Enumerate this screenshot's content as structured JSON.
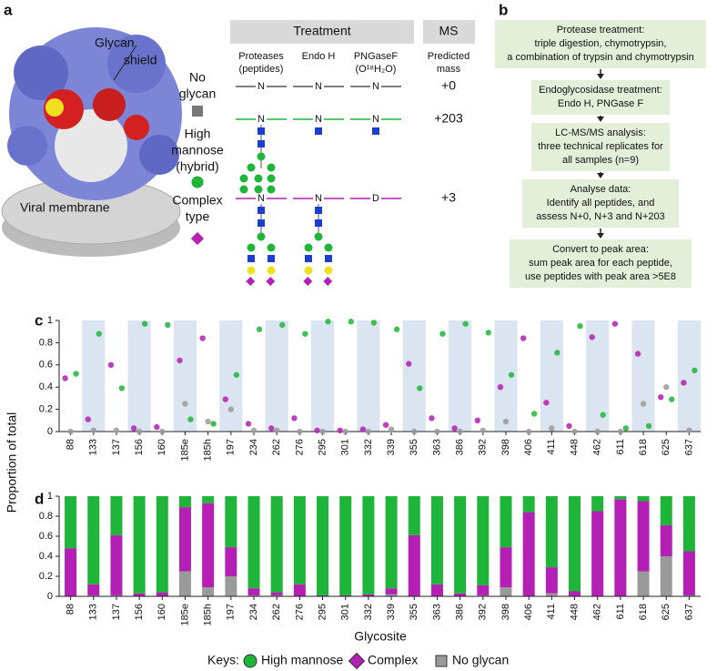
{
  "panel_labels": [
    "a",
    "b",
    "c",
    "d"
  ],
  "panel_a": {
    "glycan_shield": [
      "Glycan",
      "shield"
    ],
    "viral_membrane": "Viral membrane",
    "treatment": "Treatment",
    "ms": "MS",
    "columns": [
      [
        "Proteases",
        "(peptides)"
      ],
      [
        "Endo H"
      ],
      [
        "PNGaseF",
        "(O¹⁸H₂O)"
      ],
      [
        "Predicted",
        "mass"
      ]
    ],
    "rows": [
      {
        "label": [
          "No",
          "glycan"
        ],
        "residues": [
          "N",
          "N",
          "N"
        ],
        "mass": "+0"
      },
      {
        "label": [
          "High",
          "mannose",
          "(hybrid)"
        ],
        "residues": [
          "N",
          "N",
          "N"
        ],
        "mass": "+203"
      },
      {
        "label": [
          "Complex",
          "type"
        ],
        "residues": [
          "N",
          "N",
          "D"
        ],
        "mass": "+3"
      }
    ]
  },
  "panel_b": {
    "steps": [
      [
        "Protease treatment:",
        "triple digestion, chymotrypsin,",
        "a combination of trypsin and chymotrypsin"
      ],
      [
        "Endoglycosidase treatment:",
        "Endo H, PNGase F"
      ],
      [
        "LC-MS/MS analysis:",
        "three technical replicates for",
        "all samples (n=9)"
      ],
      [
        "Analyse data:",
        "Identify all peptides, and",
        "assess N+0, N+3 and N+203"
      ],
      [
        "Convert to peak area:",
        "sum peak area for each peptide,",
        "use peptides with peak area >5E8"
      ]
    ]
  },
  "chart_data": [
    {
      "type": "strip",
      "ylabel": "Proportion of total",
      "categories": [
        "88",
        "133",
        "137",
        "156",
        "160",
        "185e",
        "185h",
        "197",
        "234",
        "262",
        "276",
        "295",
        "301",
        "332",
        "339",
        "355",
        "363",
        "386",
        "392",
        "398",
        "406",
        "411",
        "448",
        "462",
        "611",
        "618",
        "625",
        "637"
      ],
      "series": [
        {
          "name": "High mannose",
          "color": "#1fb53a",
          "values": [
            0.52,
            0.88,
            0.39,
            0.97,
            0.96,
            0.11,
            0.07,
            0.51,
            0.92,
            0.96,
            0.88,
            0.99,
            0.99,
            0.98,
            0.92,
            0.39,
            0.88,
            0.97,
            0.89,
            0.51,
            0.16,
            0.71,
            0.95,
            0.15,
            0.03,
            0.05,
            0.29,
            0.55
          ]
        },
        {
          "name": "Complex",
          "color": "#b41fb4",
          "values": [
            0.48,
            0.11,
            0.6,
            0.03,
            0.04,
            0.64,
            0.84,
            0.29,
            0.07,
            0.03,
            0.12,
            0.01,
            0.01,
            0.02,
            0.06,
            0.61,
            0.12,
            0.03,
            0.1,
            0.4,
            0.84,
            0.26,
            0.05,
            0.85,
            0.97,
            0.7,
            0.31,
            0.44
          ]
        },
        {
          "name": "No glycan",
          "color": "#9a9a9a",
          "values": [
            0,
            0.01,
            0.01,
            0,
            0,
            0.25,
            0.09,
            0.2,
            0.01,
            0.01,
            0,
            0,
            0,
            0,
            0.02,
            0,
            0,
            0,
            0.01,
            0.09,
            0,
            0.03,
            0,
            0,
            0,
            0.25,
            0.4,
            0.01
          ]
        }
      ],
      "ylim": [
        0,
        1
      ],
      "yticks": [
        0,
        0.2,
        0.4,
        0.6,
        0.8,
        1
      ]
    },
    {
      "type": "stacked_bar",
      "xlabel": "Glycosite",
      "legend_title": "Keys:",
      "categories": [
        "88",
        "133",
        "137",
        "156",
        "160",
        "185e",
        "185h",
        "197",
        "234",
        "262",
        "276",
        "295",
        "301",
        "332",
        "339",
        "355",
        "363",
        "386",
        "392",
        "398",
        "406",
        "411",
        "448",
        "462",
        "611",
        "618",
        "625",
        "637"
      ],
      "series": [
        {
          "name": "High mannose",
          "color": "#1fb53a",
          "values": [
            0.52,
            0.88,
            0.39,
            0.97,
            0.96,
            0.11,
            0.07,
            0.51,
            0.92,
            0.96,
            0.88,
            0.99,
            0.99,
            0.98,
            0.92,
            0.39,
            0.88,
            0.97,
            0.89,
            0.51,
            0.16,
            0.71,
            0.95,
            0.15,
            0.03,
            0.05,
            0.29,
            0.55
          ]
        },
        {
          "name": "Complex",
          "color": "#b41fb4",
          "values": [
            0.48,
            0.11,
            0.6,
            0.03,
            0.04,
            0.64,
            0.84,
            0.29,
            0.07,
            0.03,
            0.12,
            0.01,
            0.01,
            0.02,
            0.06,
            0.61,
            0.12,
            0.03,
            0.1,
            0.4,
            0.84,
            0.26,
            0.05,
            0.85,
            0.97,
            0.7,
            0.31,
            0.44
          ]
        },
        {
          "name": "No glycan",
          "color": "#9a9a9a",
          "values": [
            0,
            0.01,
            0.01,
            0,
            0,
            0.25,
            0.09,
            0.2,
            0.01,
            0.01,
            0,
            0,
            0,
            0,
            0.02,
            0,
            0,
            0,
            0.01,
            0.09,
            0,
            0.03,
            0,
            0,
            0,
            0.25,
            0.4,
            0.01
          ]
        }
      ],
      "ylim": [
        0,
        1
      ],
      "yticks": [
        0,
        0.2,
        0.4,
        0.6,
        0.8,
        1
      ]
    }
  ]
}
